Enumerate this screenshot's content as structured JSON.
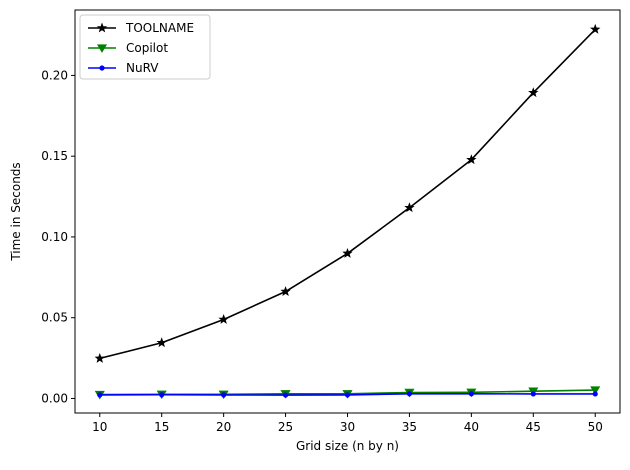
{
  "chart_data": {
    "type": "line",
    "title": "",
    "xlabel": "Grid size (n by n)",
    "ylabel": "Time in Seconds",
    "x": [
      10,
      15,
      20,
      25,
      30,
      35,
      40,
      45,
      50
    ],
    "xlim": [
      8,
      52
    ],
    "ylim": [
      -0.009,
      0.2405
    ],
    "xticks": [
      10,
      15,
      20,
      25,
      30,
      35,
      40,
      45,
      50
    ],
    "yticks": [
      0.0,
      0.05,
      0.1,
      0.15,
      0.2
    ],
    "ytick_labels": [
      "0.00",
      "0.05",
      "0.10",
      "0.15",
      "0.20"
    ],
    "grid": false,
    "legend_position": "top-left",
    "series": [
      {
        "name": "TOOLNAME",
        "color": "#000000",
        "marker": "star",
        "values": [
          0.0248,
          0.0345,
          0.0489,
          0.0662,
          0.0898,
          0.1181,
          0.1478,
          0.1893,
          0.2285
        ]
      },
      {
        "name": "Copilot",
        "color": "#008000",
        "marker": "triangle-down",
        "values": [
          0.0024,
          0.0026,
          0.0026,
          0.0029,
          0.0029,
          0.0037,
          0.0038,
          0.0045,
          0.0052
        ]
      },
      {
        "name": "NuRV",
        "color": "#0000ff",
        "marker": "circle",
        "values": [
          0.0022,
          0.0023,
          0.0022,
          0.0021,
          0.0022,
          0.0029,
          0.0029,
          0.0028,
          0.0028
        ]
      }
    ]
  }
}
